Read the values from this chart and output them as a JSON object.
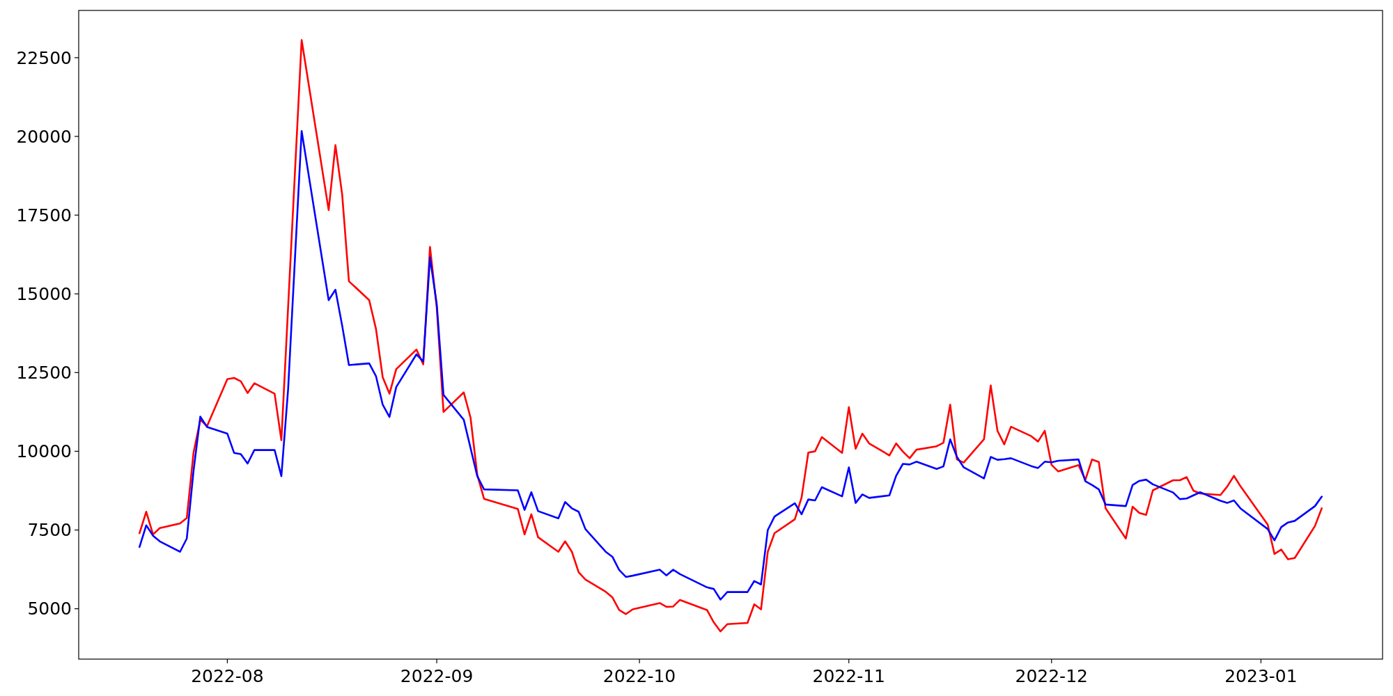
{
  "chart_data": {
    "type": "line",
    "xlim": [
      "2022-07-10",
      "2023-01-19"
    ],
    "ylim": [
      3400,
      24000
    ],
    "yticks": [
      5000,
      7500,
      10000,
      12500,
      15000,
      17500,
      20000,
      22500
    ],
    "xticks": [
      {
        "value": "2022-08-01",
        "label": "2022-08"
      },
      {
        "value": "2022-09-01",
        "label": "2022-09"
      },
      {
        "value": "2022-10-01",
        "label": "2022-10"
      },
      {
        "value": "2022-11-01",
        "label": "2022-11"
      },
      {
        "value": "2022-12-01",
        "label": "2022-12"
      },
      {
        "value": "2023-01-01",
        "label": "2023-01"
      }
    ],
    "grid": false,
    "line_style": "solid",
    "marker": "none",
    "series": [
      {
        "color": "#ff0000",
        "x": [
          "2022-07-19",
          "2022-07-20",
          "2022-07-21",
          "2022-07-22",
          "2022-07-25",
          "2022-07-26",
          "2022-07-27",
          "2022-07-28",
          "2022-07-29",
          "2022-08-01",
          "2022-08-02",
          "2022-08-03",
          "2022-08-04",
          "2022-08-05",
          "2022-08-08",
          "2022-08-09",
          "2022-08-12",
          "2022-08-16",
          "2022-08-17",
          "2022-08-18",
          "2022-08-19",
          "2022-08-22",
          "2022-08-23",
          "2022-08-24",
          "2022-08-25",
          "2022-08-26",
          "2022-08-29",
          "2022-08-30",
          "2022-08-31",
          "2022-09-01",
          "2022-09-02",
          "2022-09-05",
          "2022-09-06",
          "2022-09-07",
          "2022-09-08",
          "2022-09-13",
          "2022-09-14",
          "2022-09-15",
          "2022-09-16",
          "2022-09-19",
          "2022-09-20",
          "2022-09-21",
          "2022-09-22",
          "2022-09-23",
          "2022-09-26",
          "2022-09-27",
          "2022-09-28",
          "2022-09-29",
          "2022-09-30",
          "2022-10-04",
          "2022-10-05",
          "2022-10-06",
          "2022-10-07",
          "2022-10-11",
          "2022-10-12",
          "2022-10-13",
          "2022-10-14",
          "2022-10-17",
          "2022-10-18",
          "2022-10-19",
          "2022-10-20",
          "2022-10-21",
          "2022-10-24",
          "2022-10-25",
          "2022-10-26",
          "2022-10-27",
          "2022-10-28",
          "2022-10-31",
          "2022-11-01",
          "2022-11-02",
          "2022-11-03",
          "2022-11-04",
          "2022-11-07",
          "2022-11-08",
          "2022-11-09",
          "2022-11-10",
          "2022-11-11",
          "2022-11-14",
          "2022-11-15",
          "2022-11-16",
          "2022-11-17",
          "2022-11-18",
          "2022-11-21",
          "2022-11-22",
          "2022-11-23",
          "2022-11-24",
          "2022-11-25",
          "2022-11-28",
          "2022-11-29",
          "2022-11-30",
          "2022-12-01",
          "2022-12-02",
          "2022-12-05",
          "2022-12-06",
          "2022-12-07",
          "2022-12-08",
          "2022-12-09",
          "2022-12-12",
          "2022-12-13",
          "2022-12-14",
          "2022-12-15",
          "2022-12-16",
          "2022-12-19",
          "2022-12-20",
          "2022-12-21",
          "2022-12-22",
          "2022-12-23",
          "2022-12-26",
          "2022-12-27",
          "2022-12-28",
          "2022-12-29",
          "2023-01-02",
          "2023-01-03",
          "2023-01-04",
          "2023-01-05",
          "2023-01-06",
          "2023-01-09",
          "2023-01-10"
        ],
        "values": [
          7400,
          8080,
          7360,
          7560,
          7710,
          7880,
          9960,
          11000,
          10800,
          12290,
          12330,
          12220,
          11850,
          12160,
          11830,
          10350,
          23060,
          17660,
          19720,
          18150,
          15400,
          14800,
          13890,
          12350,
          11830,
          12610,
          13230,
          12760,
          16490,
          14560,
          11250,
          11870,
          11070,
          9250,
          8490,
          8170,
          7360,
          8000,
          7270,
          6810,
          7140,
          6810,
          6160,
          5930,
          5540,
          5360,
          4960,
          4830,
          4980,
          5180,
          5060,
          5070,
          5280,
          4960,
          4570,
          4280,
          4510,
          4550,
          5140,
          4980,
          6810,
          7400,
          7840,
          8530,
          9960,
          10000,
          10450,
          9950,
          11400,
          10080,
          10560,
          10250,
          9870,
          10250,
          9990,
          9780,
          10050,
          10160,
          10270,
          11480,
          9740,
          9640,
          10380,
          12090,
          10650,
          10220,
          10780,
          10480,
          10310,
          10650,
          9570,
          9360,
          9560,
          9090,
          9740,
          9660,
          8190,
          7230,
          8240,
          8040,
          7980,
          8760,
          9080,
          9080,
          9180,
          8750,
          8660,
          8610,
          8880,
          9220,
          8880,
          7670,
          6740,
          6880,
          6570,
          6610,
          7630,
          8190
        ]
      },
      {
        "color": "#0000ff",
        "x": [
          "2022-07-19",
          "2022-07-20",
          "2022-07-21",
          "2022-07-22",
          "2022-07-25",
          "2022-07-26",
          "2022-07-27",
          "2022-07-28",
          "2022-07-29",
          "2022-08-01",
          "2022-08-02",
          "2022-08-03",
          "2022-08-04",
          "2022-08-05",
          "2022-08-08",
          "2022-08-09",
          "2022-08-10",
          "2022-08-12",
          "2022-08-16",
          "2022-08-17",
          "2022-08-18",
          "2022-08-19",
          "2022-08-22",
          "2022-08-23",
          "2022-08-24",
          "2022-08-25",
          "2022-08-26",
          "2022-08-29",
          "2022-08-30",
          "2022-08-31",
          "2022-09-01",
          "2022-09-02",
          "2022-09-05",
          "2022-09-07",
          "2022-09-08",
          "2022-09-13",
          "2022-09-14",
          "2022-09-15",
          "2022-09-16",
          "2022-09-19",
          "2022-09-20",
          "2022-09-21",
          "2022-09-22",
          "2022-09-23",
          "2022-09-26",
          "2022-09-27",
          "2022-09-28",
          "2022-09-29",
          "2022-09-30",
          "2022-10-04",
          "2022-10-05",
          "2022-10-06",
          "2022-10-07",
          "2022-10-11",
          "2022-10-12",
          "2022-10-13",
          "2022-10-14",
          "2022-10-17",
          "2022-10-18",
          "2022-10-19",
          "2022-10-20",
          "2022-10-21",
          "2022-10-24",
          "2022-10-25",
          "2022-10-26",
          "2022-10-27",
          "2022-10-28",
          "2022-10-31",
          "2022-11-01",
          "2022-11-02",
          "2022-11-03",
          "2022-11-04",
          "2022-11-07",
          "2022-11-08",
          "2022-11-09",
          "2022-11-10",
          "2022-11-11",
          "2022-11-14",
          "2022-11-15",
          "2022-11-16",
          "2022-11-17",
          "2022-11-18",
          "2022-11-21",
          "2022-11-22",
          "2022-11-23",
          "2022-11-24",
          "2022-11-25",
          "2022-11-28",
          "2022-11-29",
          "2022-11-30",
          "2022-12-01",
          "2022-12-02",
          "2022-12-05",
          "2022-12-06",
          "2022-12-07",
          "2022-12-08",
          "2022-12-09",
          "2022-12-12",
          "2022-12-13",
          "2022-12-14",
          "2022-12-15",
          "2022-12-16",
          "2022-12-19",
          "2022-12-20",
          "2022-12-21",
          "2022-12-22",
          "2022-12-23",
          "2022-12-26",
          "2022-12-27",
          "2022-12-28",
          "2022-12-29",
          "2023-01-02",
          "2023-01-03",
          "2023-01-04",
          "2023-01-05",
          "2023-01-06",
          "2023-01-09",
          "2023-01-10"
        ],
        "values": [
          6960,
          7650,
          7320,
          7140,
          6810,
          7230,
          9380,
          11100,
          10770,
          10560,
          9950,
          9910,
          9610,
          10040,
          10040,
          9210,
          11980,
          20170,
          14800,
          15130,
          13990,
          12740,
          12790,
          12390,
          11480,
          11090,
          12040,
          13080,
          12850,
          16160,
          14670,
          11790,
          11000,
          9210,
          8790,
          8760,
          8140,
          8700,
          8100,
          7870,
          8390,
          8190,
          8080,
          7530,
          6810,
          6650,
          6230,
          6010,
          6050,
          6240,
          6060,
          6240,
          6100,
          5680,
          5630,
          5290,
          5530,
          5530,
          5880,
          5770,
          7500,
          7930,
          8350,
          8000,
          8470,
          8440,
          8860,
          8570,
          9490,
          8360,
          8630,
          8520,
          8600,
          9220,
          9600,
          9580,
          9670,
          9440,
          9520,
          10380,
          9820,
          9490,
          9140,
          9820,
          9730,
          9750,
          9780,
          9530,
          9470,
          9670,
          9650,
          9700,
          9740,
          9050,
          8930,
          8790,
          8310,
          8260,
          8930,
          9060,
          9100,
          8950,
          8690,
          8480,
          8500,
          8600,
          8700,
          8430,
          8360,
          8440,
          8180,
          7530,
          7170,
          7590,
          7740,
          7790,
          8260,
          8560
        ]
      }
    ]
  }
}
